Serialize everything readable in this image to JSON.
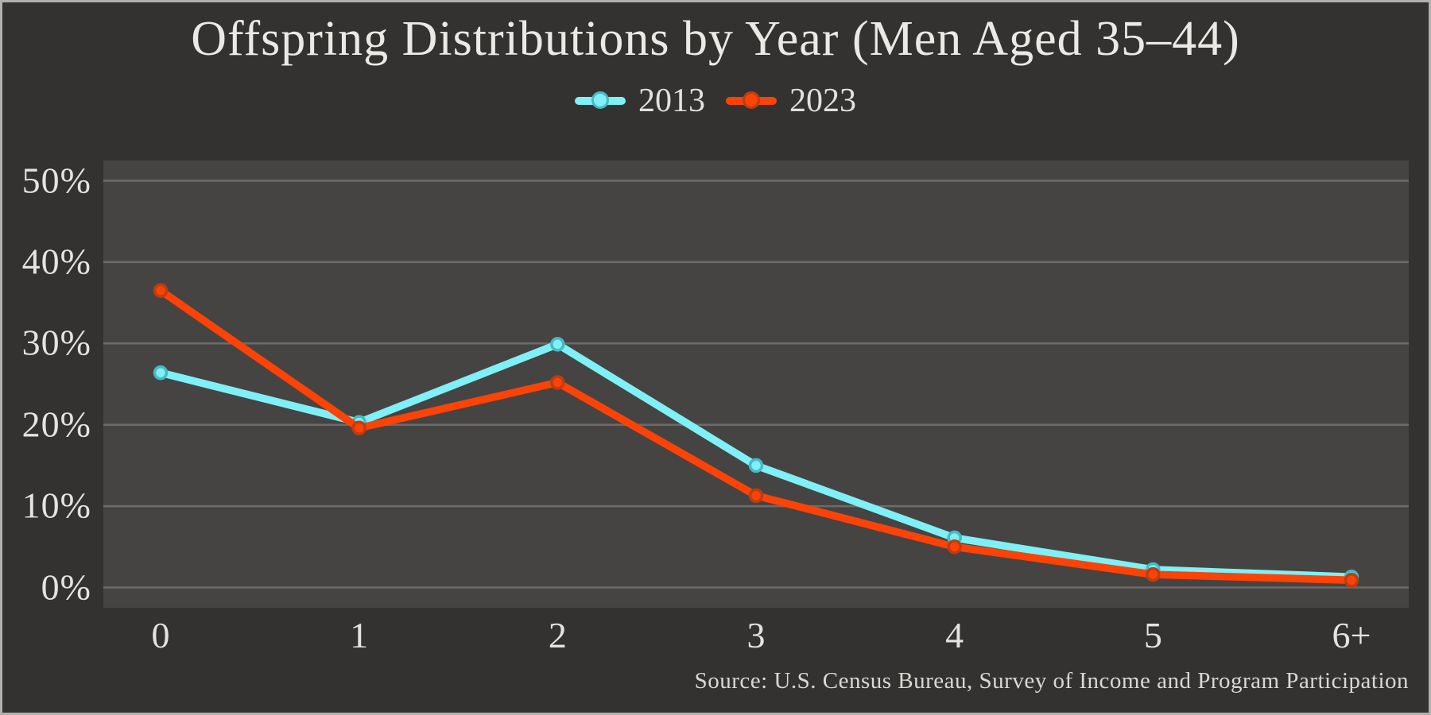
{
  "colors": {
    "background": "#333231",
    "plot_background": "#454443",
    "gridline": "#6c6b6a",
    "figure_border": "#b1b0af",
    "title_text": "#ebe9e6",
    "tick_text": "#e5e3e0",
    "source_text": "#dad8d5"
  },
  "chart_data": {
    "type": "line",
    "title": "Offspring Distributions by Year (Men Aged 35–44)",
    "categories": [
      "0",
      "1",
      "2",
      "3",
      "4",
      "5",
      "6+"
    ],
    "series": [
      {
        "name": "2013",
        "color": "#7ff0f6",
        "marker_edge": "#47bac6",
        "values": [
          26.4,
          20.3,
          29.9,
          15.0,
          6.1,
          2.2,
          1.3
        ]
      },
      {
        "name": "2023",
        "color": "#fb4307",
        "marker_edge": "#bf3c0e",
        "values": [
          36.5,
          19.6,
          25.2,
          11.3,
          5.0,
          1.6,
          0.9
        ]
      }
    ],
    "xlabel": "",
    "ylabel": "",
    "yticks": [
      0,
      10,
      20,
      30,
      40,
      50
    ],
    "ytick_suffix": "%",
    "ylim": [
      0,
      50
    ],
    "grid": true,
    "legend_position": "top-center",
    "source": "Source: U.S. Census Bureau, Survey of Income and Program Participation"
  }
}
